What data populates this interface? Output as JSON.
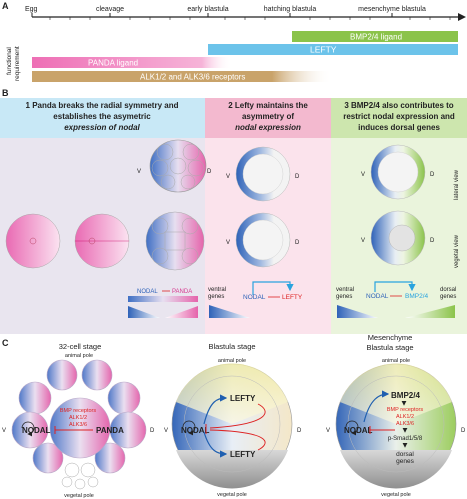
{
  "panelA": {
    "letter": "A",
    "stages": [
      "Egg",
      "cleavage",
      "early blastula",
      "hatching blastula",
      "mesenchyme blastula"
    ],
    "side_label_1": "functional",
    "side_label_2": "requirement",
    "bars": {
      "bmp": "BMP2/4 ligand",
      "lefty": "LEFTY",
      "panda": "PANDA ligand",
      "alk": "ALK1/2 and ALK3/6 receptors"
    },
    "colors": {
      "bmp": "#8bc34a",
      "lefty": "#6cc3ea",
      "panda": "#ee6fb5",
      "alk": "#c9a36a"
    }
  },
  "panelB": {
    "letter": "B",
    "col1": {
      "line1": "1  Panda breaks the radial symmetry and",
      "line2": "establishes the asymetric",
      "line3": "expression of nodal",
      "legend_left": "NODAL",
      "legend_right": "PANDA"
    },
    "col2": {
      "line1": "2   Lefty maintains the",
      "line2": "asymmetry of",
      "line3": "nodal expression",
      "legend_left": "ventral",
      "legend_left2": "genes",
      "legend_mid": "NODAL",
      "legend_right": "LEFTY"
    },
    "col3": {
      "line1": "3  BMP2/4  also contributes to",
      "line2": "restrict nodal expression and",
      "line3": "induces dorsal genes",
      "legend_left": "ventral",
      "legend_left2": "genes",
      "legend_mid": "NODAL",
      "legend_mid2": "BMP2/4",
      "legend_right": "dorsal",
      "legend_right2": "genes"
    },
    "axis_v": "V",
    "axis_d": "D",
    "lateral_view": "lateral view",
    "vegetal_view": "vegetal view"
  },
  "panelC": {
    "letter": "C",
    "stage1": "32-cell stage",
    "stage2": "Blastula stage",
    "stage3_line1": "Mesenchyme",
    "stage3_line2": "Blastula stage",
    "animal_pole": "animal pole",
    "vegetal_pole": "vegetal pole",
    "nodal": "NODAL",
    "panda": "PANDA",
    "lefty_top": "LEFTY",
    "lefty_bottom": "LEFTY",
    "bmp": "BMP2/4",
    "receptors1": "BMP receptors",
    "receptors2": "ALK1/2",
    "receptors3": "ALK3/6",
    "psmad": "p-Smad1/5/8",
    "dorsal1": "dorsal",
    "dorsal2": "genes",
    "v": "V",
    "d": "D"
  }
}
